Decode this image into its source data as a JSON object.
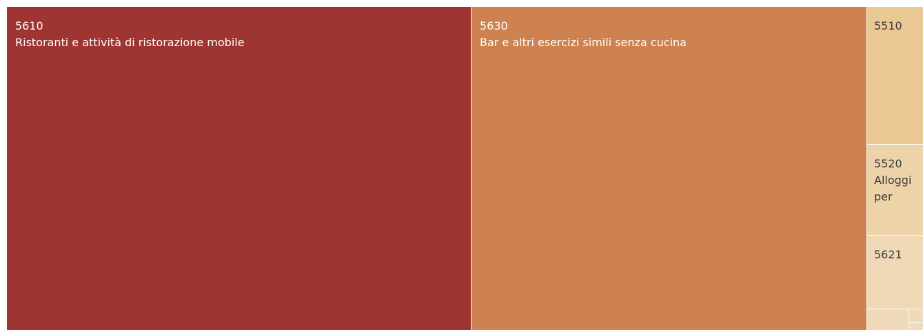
{
  "chart_data": {
    "type": "treemap",
    "title": "",
    "tiles": [
      {
        "code": "5610",
        "name": "Ristoranti e attività di ristorazione mobile",
        "color": "#9e3532",
        "text_color": "#ffffff"
      },
      {
        "code": "5630",
        "name": "Bar e altri esercizi simili senza cucina",
        "color": "#cd8250",
        "text_color": "#ffffff"
      },
      {
        "code": "5510",
        "name": "",
        "color": "#ebc995",
        "text_color": "#3a3a3a"
      },
      {
        "code": "5520",
        "name": "Alloggi per",
        "color": "#eed3a9",
        "text_color": "#3a3a3a"
      },
      {
        "code": "5621",
        "name": "",
        "color": "#efd8b6",
        "text_color": "#3a3a3a"
      },
      {
        "code": "",
        "name": "",
        "color": "#efd9b8",
        "text_color": "#3a3a3a"
      },
      {
        "code": "",
        "name": "",
        "color": "#efdab9",
        "text_color": "#3a3a3a"
      },
      {
        "code": "",
        "name": "",
        "color": "#f0dbbb",
        "text_color": "#3a3a3a"
      }
    ]
  }
}
